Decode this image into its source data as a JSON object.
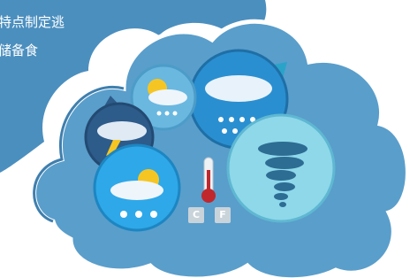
{
  "text": {
    "lines": [
      "特点制定逃",
      "储备食"
    ]
  },
  "thermometer": {
    "units": [
      "C",
      "F"
    ]
  }
}
